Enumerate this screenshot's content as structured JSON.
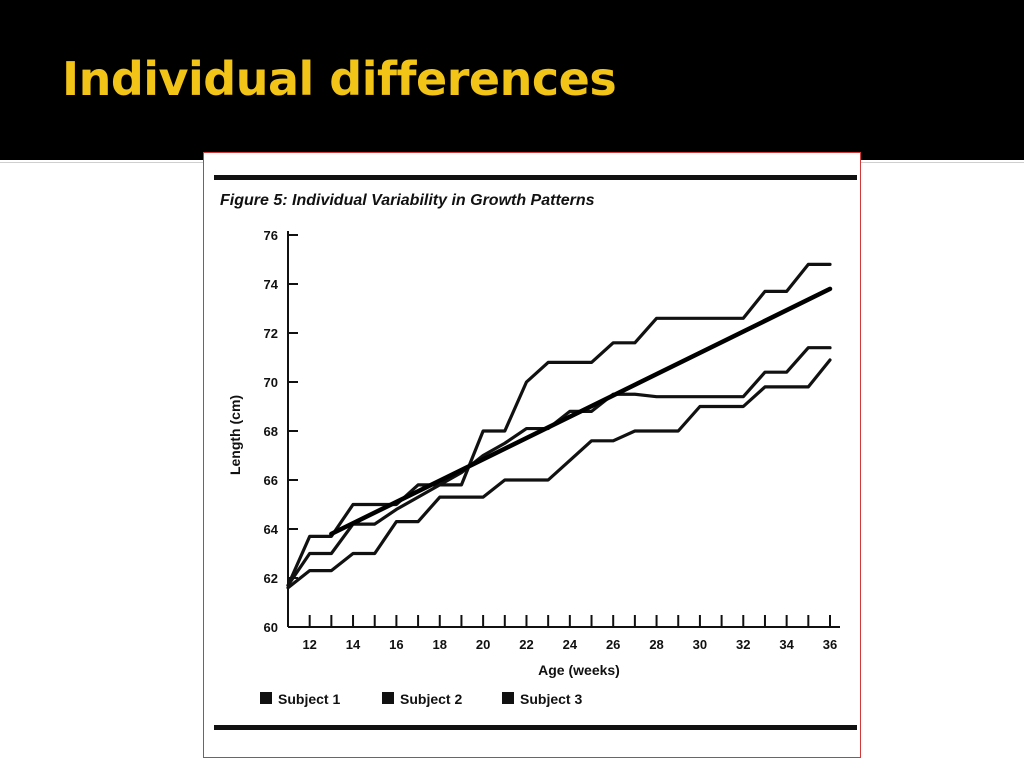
{
  "slide": {
    "title": "Individual differences",
    "title_color": "#f2c418",
    "header_color": "#000000",
    "frame_border_color": "#d23a3a"
  },
  "chart_data": {
    "type": "line",
    "title": "Figure 5: Individual Variability in Growth Patterns",
    "xlabel": "Age (weeks)",
    "ylabel": "Length (cm)",
    "xlim": [
      11,
      36
    ],
    "ylim": [
      60,
      76
    ],
    "xticks": [
      12,
      14,
      16,
      18,
      20,
      22,
      24,
      26,
      28,
      30,
      32,
      34,
      36
    ],
    "yticks": [
      60,
      62,
      64,
      66,
      68,
      70,
      72,
      74,
      76
    ],
    "grid": false,
    "legend_position": "bottom",
    "legend": [
      "Subject 1",
      "Subject 2",
      "Subject 3"
    ],
    "series": [
      {
        "name": "Subject 1",
        "step": true,
        "x": [
          11,
          12,
          13,
          14,
          16,
          17,
          19,
          20,
          21,
          22,
          23,
          25,
          26,
          27,
          28,
          30,
          32,
          33,
          34,
          35,
          36
        ],
        "y": [
          61.7,
          63.7,
          63.7,
          65,
          65,
          65.8,
          65.8,
          68,
          68,
          70,
          70.8,
          70.8,
          71.6,
          71.6,
          72.6,
          72.6,
          72.6,
          73.7,
          73.7,
          74.8,
          74.8
        ]
      },
      {
        "name": "Subject 2",
        "step": true,
        "x": [
          11,
          12,
          13,
          14,
          15,
          16,
          18,
          19,
          20,
          21,
          22,
          23,
          24,
          25,
          26,
          27,
          28,
          30,
          32,
          33,
          34,
          35,
          36
        ],
        "y": [
          61.7,
          63,
          63,
          64.2,
          64.2,
          64.8,
          65.8,
          66.3,
          67,
          67.5,
          68.1,
          68.1,
          68.8,
          68.8,
          69.5,
          69.5,
          69.4,
          69.4,
          69.4,
          70.4,
          70.4,
          71.4,
          71.4
        ]
      },
      {
        "name": "Subject 3",
        "step": true,
        "x": [
          11,
          12,
          13,
          14,
          15,
          16,
          17,
          18,
          19,
          20,
          21,
          22,
          23,
          24,
          25,
          26,
          27,
          28,
          29,
          30,
          31,
          32,
          33,
          34,
          35,
          36
        ],
        "y": [
          61.6,
          62.3,
          62.3,
          63,
          63,
          64.3,
          64.3,
          65.3,
          65.3,
          65.3,
          66,
          66,
          66,
          66.8,
          67.6,
          67.6,
          68,
          68,
          68,
          69,
          69,
          69,
          69.8,
          69.8,
          69.8,
          70.9
        ]
      }
    ],
    "trend_line": {
      "x": [
        13,
        36
      ],
      "y": [
        63.8,
        73.8
      ]
    }
  }
}
